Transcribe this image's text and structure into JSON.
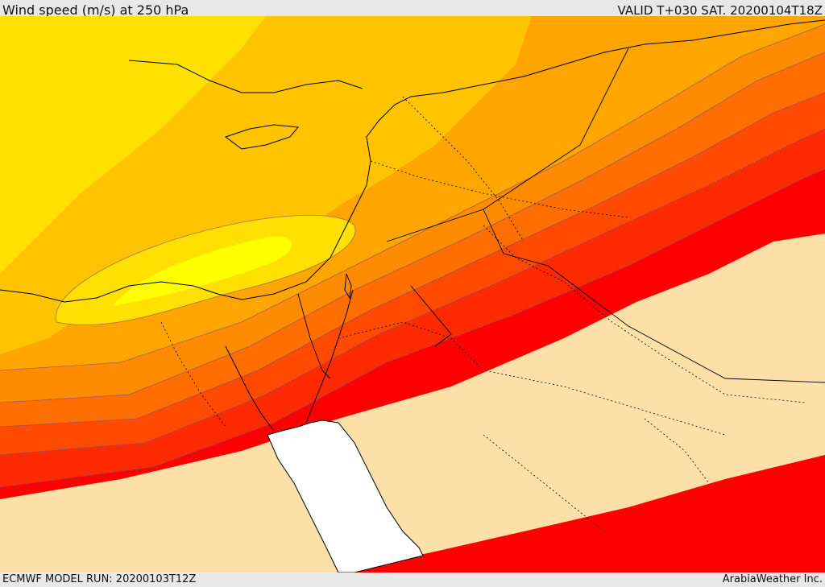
{
  "header": {
    "title": "Wind speed (m/s) at 250 hPa",
    "valid_time": "VALID T+030 SAT. 20200104T18Z"
  },
  "footer": {
    "model_run": "ECMWF MODEL RUN: 20200103T12Z",
    "credit": "ArabiaWeather Inc."
  },
  "map": {
    "field": "wind speed 250 hPa",
    "colors": {
      "calm": "#fde0a8",
      "band_1": "#ffff00",
      "band_2": "#ffe000",
      "band_3": "#ffc400",
      "band_4": "#ffa500",
      "band_5": "#ff8c00",
      "band_6": "#ff6e00",
      "band_7": "#ff4a00",
      "band_8": "#ff2a00",
      "band_9": "#ff0000",
      "sea": "#ffffff",
      "coastline": "#000000"
    }
  }
}
